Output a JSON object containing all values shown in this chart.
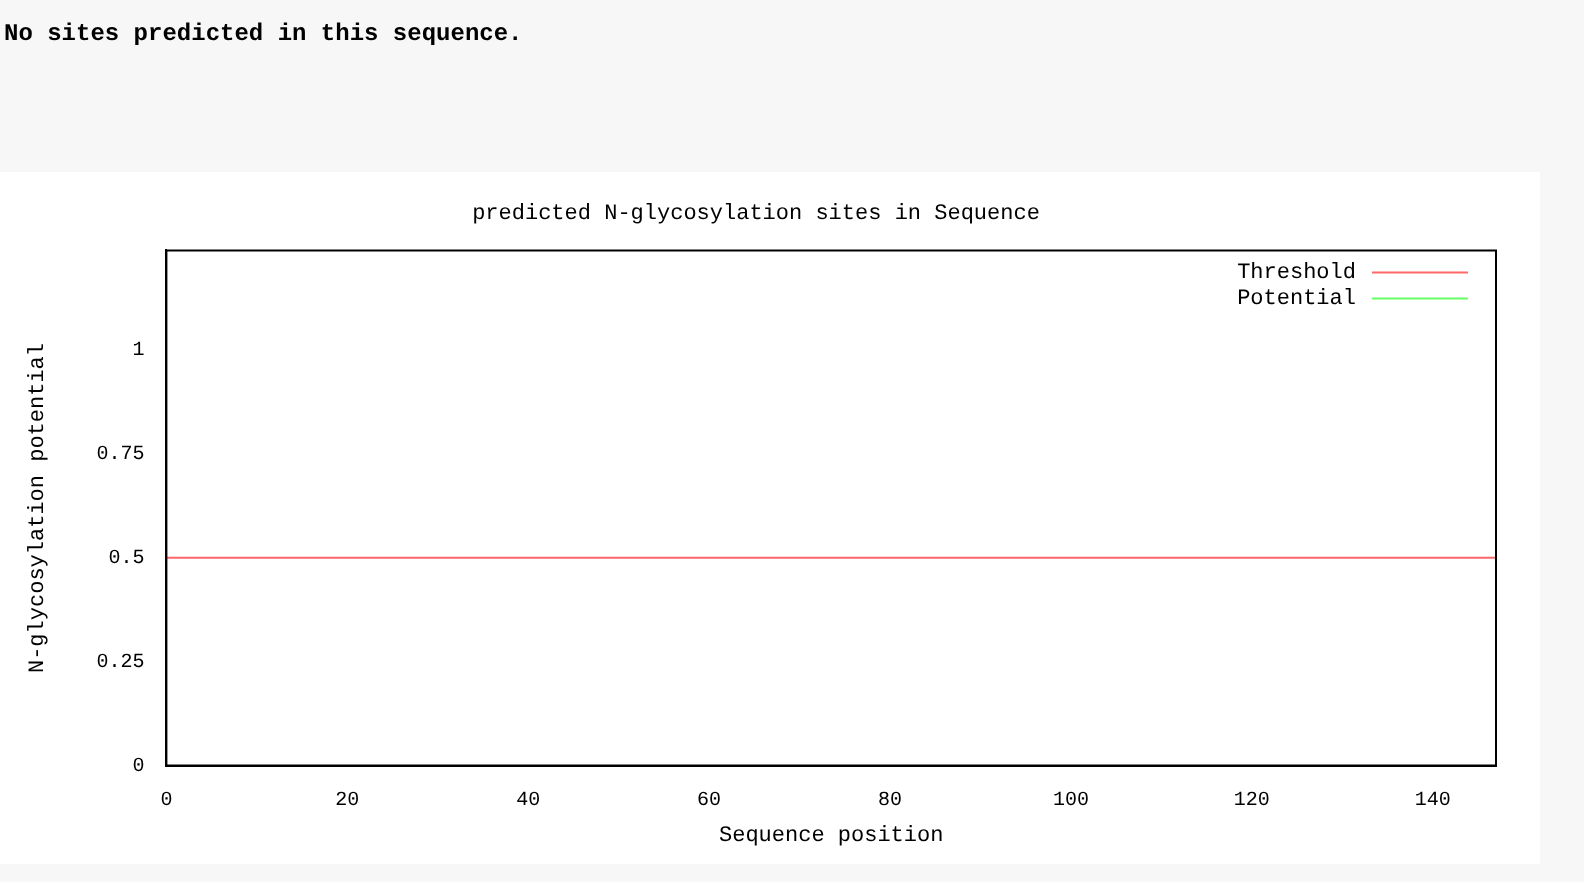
{
  "chart_data": {
    "type": "line",
    "title": "predicted N-glycosylation sites in Sequence",
    "xlabel": "Sequence position",
    "ylabel": "N-glycosylation potential",
    "annotations": [
      "No sites predicted in this sequence."
    ],
    "series": [
      {
        "name": "Threshold",
        "color": "#ff6666",
        "x": [
          0,
          147
        ],
        "values": [
          0.5,
          0.5
        ]
      },
      {
        "name": "Potential",
        "color": "#66ff66"
      }
    ],
    "xlim": [
      0,
      147
    ],
    "xticks": [
      0,
      20,
      40,
      60,
      80,
      100,
      120,
      140
    ],
    "ylim": [
      0,
      1.24
    ],
    "yticks": [
      0,
      0.25,
      0.5,
      0.75,
      1
    ],
    "legend": "top right",
    "grid": false,
    "marker": "none",
    "line_style": "solid"
  }
}
